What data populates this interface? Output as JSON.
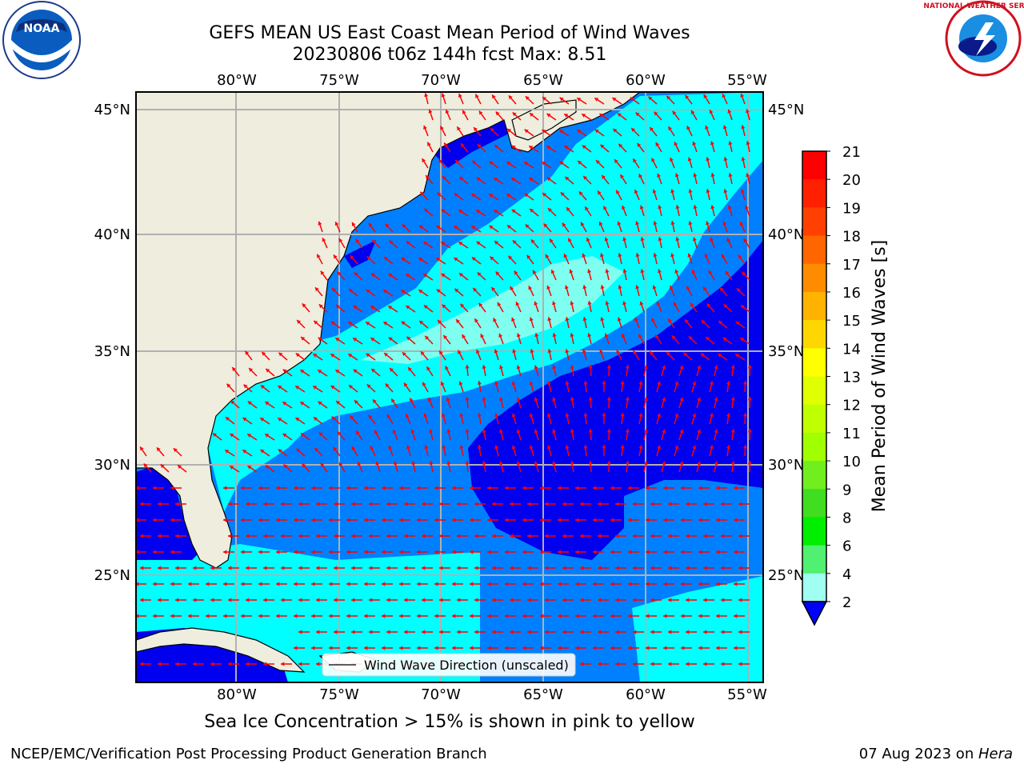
{
  "title": {
    "line1": "GEFS MEAN US East Coast Mean Period of Wind Waves",
    "line2": "20230806 t06z 144h fcst   Max: 8.51"
  },
  "logos": {
    "left": "NOAA",
    "right": "NATIONAL WEATHER SERVICE"
  },
  "axes": {
    "lon_labels": [
      "80°W",
      "75°W",
      "70°W",
      "65°W",
      "60°W",
      "55°W"
    ],
    "lat_labels": [
      "45°N",
      "40°N",
      "35°N",
      "30°N",
      "25°N"
    ]
  },
  "legend": {
    "label": "Wind Wave Direction (unscaled)"
  },
  "colorbar": {
    "label": "Mean Period of Wind Waves [s]",
    "ticks": [
      "21",
      "20",
      "19",
      "18",
      "17",
      "16",
      "15",
      "14",
      "13",
      "12",
      "11",
      "10",
      "9",
      "8",
      "6",
      "4",
      "2"
    ],
    "colors": [
      "#ff0000",
      "#ff2000",
      "#ff4000",
      "#ff6600",
      "#ff8c00",
      "#ffb300",
      "#ffd700",
      "#ffff00",
      "#e0ff00",
      "#c0ff00",
      "#a0ff00",
      "#70ee20",
      "#40dd20",
      "#00ee00",
      "#50f070",
      "#a0fff0",
      "#50ffff",
      "#00ffff",
      "#007fff"
    ]
  },
  "map_colors": {
    "land": "#eeedde",
    "band_2_4": "#0000ee",
    "band_4_6": "#0080ff",
    "band_6_8": "#00ffff",
    "band_8_9": "#50ffff",
    "arrows": "#ff0000",
    "grid": "#b0b0b0"
  },
  "notes": {
    "sea_ice": "Sea Ice Concentration > 15% is shown in pink to yellow",
    "credit": "NCEP/EMC/Verification Post Processing Product Generation Branch",
    "date": "07 Aug 2023 on ",
    "host": "Hera"
  }
}
